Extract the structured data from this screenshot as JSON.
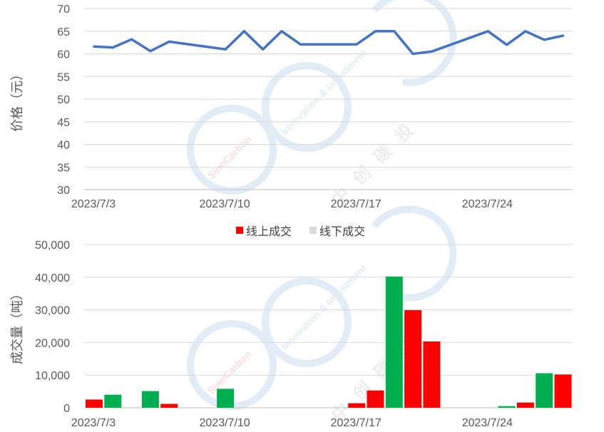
{
  "chart_data": [
    {
      "type": "line",
      "ylabel": "价格（元）",
      "ylim": [
        30,
        70
      ],
      "yticks": [
        30,
        35,
        40,
        45,
        50,
        55,
        60,
        65,
        70
      ],
      "x_tick_labels": [
        "2023/7/3",
        "2023/7/10",
        "2023/7/17",
        "2023/7/24"
      ],
      "x_tick_dates": [
        "2023-07-03",
        "2023-07-10",
        "2023-07-17",
        "2023-07-24"
      ],
      "x_range": [
        "2023-07-03",
        "2023-07-29"
      ],
      "grid": true,
      "series": [
        {
          "color": "#4472C4",
          "points": [
            {
              "date": "2023-07-03",
              "value": 61.6
            },
            {
              "date": "2023-07-04",
              "value": 61.4
            },
            {
              "date": "2023-07-05",
              "value": 63.2
            },
            {
              "date": "2023-07-06",
              "value": 60.6
            },
            {
              "date": "2023-07-07",
              "value": 62.7
            },
            {
              "date": "2023-07-10",
              "value": 61.0
            },
            {
              "date": "2023-07-11",
              "value": 65.0
            },
            {
              "date": "2023-07-12",
              "value": 61.0
            },
            {
              "date": "2023-07-13",
              "value": 65.0
            },
            {
              "date": "2023-07-14",
              "value": 62.1
            },
            {
              "date": "2023-07-17",
              "value": 62.1
            },
            {
              "date": "2023-07-18",
              "value": 65.0
            },
            {
              "date": "2023-07-19",
              "value": 65.0
            },
            {
              "date": "2023-07-20",
              "value": 60.0
            },
            {
              "date": "2023-07-21",
              "value": 60.5
            },
            {
              "date": "2023-07-24",
              "value": 65.0
            },
            {
              "date": "2023-07-25",
              "value": 62.0
            },
            {
              "date": "2023-07-26",
              "value": 65.0
            },
            {
              "date": "2023-07-27",
              "value": 63.1
            },
            {
              "date": "2023-07-28",
              "value": 64.0
            }
          ]
        }
      ]
    },
    {
      "type": "bar",
      "ylabel": "成交量（吨）",
      "ylim": [
        0,
        50000
      ],
      "yticks": [
        0,
        10000,
        20000,
        30000,
        40000,
        50000
      ],
      "ytick_labels": [
        "0",
        "10,000",
        "20,000",
        "30,000",
        "40,000",
        "50,000"
      ],
      "x_tick_labels": [
        "2023/7/3",
        "2023/7/10",
        "2023/7/17",
        "2023/7/24"
      ],
      "x_tick_dates": [
        "2023-07-03",
        "2023-07-10",
        "2023-07-17",
        "2023-07-24"
      ],
      "x_range": [
        "2023-07-03",
        "2023-07-29"
      ],
      "grid": true,
      "legend": {
        "position": "top",
        "items": [
          {
            "label": "线上成交",
            "color": "#FF0000"
          },
          {
            "label": "线下成交",
            "color": "#D9D9D9"
          }
        ]
      },
      "bars": [
        {
          "date": "2023-07-03",
          "value": 2500,
          "color": "#FF0000"
        },
        {
          "date": "2023-07-04",
          "value": 4000,
          "color": "#00B050"
        },
        {
          "date": "2023-07-06",
          "value": 5100,
          "color": "#00B050"
        },
        {
          "date": "2023-07-07",
          "value": 1200,
          "color": "#FF0000"
        },
        {
          "date": "2023-07-10",
          "value": 5800,
          "color": "#00B050"
        },
        {
          "date": "2023-07-17",
          "value": 1400,
          "color": "#FF0000"
        },
        {
          "date": "2023-07-18",
          "value": 5300,
          "color": "#FF0000"
        },
        {
          "date": "2023-07-19",
          "value": 40200,
          "color": "#00B050"
        },
        {
          "date": "2023-07-20",
          "value": 29900,
          "color": "#FF0000"
        },
        {
          "date": "2023-07-21",
          "value": 20300,
          "color": "#FF0000"
        },
        {
          "date": "2023-07-25",
          "value": 500,
          "color": "#00B050"
        },
        {
          "date": "2023-07-26",
          "value": 1600,
          "color": "#FF0000"
        },
        {
          "date": "2023-07-27",
          "value": 10600,
          "color": "#00B050"
        },
        {
          "date": "2023-07-28",
          "value": 10200,
          "color": "#FF0000"
        }
      ]
    }
  ],
  "watermark": {
    "brand": "SinoCarbon",
    "tagline": "Innovation & Investment",
    "chinese": "中创碳投",
    "color": "#BDD7EE"
  }
}
